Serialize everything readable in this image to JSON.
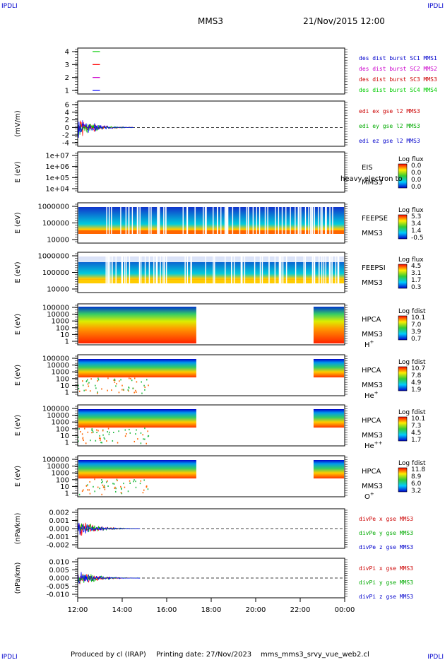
{
  "corner": {
    "tl": "IPDLI",
    "tr": "IPDLI",
    "bl": "IPDLI",
    "br": "IPDLI"
  },
  "header": {
    "mission": "MMS3",
    "datetime": "21/Nov/2015 12:00"
  },
  "footer": {
    "produced": "Produced by cl (IRAP)",
    "printing": "Printing date: 27/Nov/2023",
    "file": "mms_mms3_srvy_vue_web2.cl"
  },
  "colors": {
    "c1": "#0000ff",
    "c2": "#cc00cc",
    "c3": "#ff0000",
    "c4": "#00cc00"
  },
  "chart_data": [
    {
      "id": "burst",
      "type": "line",
      "ylabel": "",
      "yticks": [
        "4",
        "3",
        "2",
        "1"
      ],
      "legend": [
        {
          "label": "des dist burst SC1 MMS1",
          "color": "#0000cc"
        },
        {
          "label": "des dist burst SC2 MMS2",
          "color": "#cc00cc"
        },
        {
          "label": "des dist burst SC3 MMS3",
          "color": "#cc0000"
        },
        {
          "label": "des dist burst SC4 MMS4",
          "color": "#00cc00"
        }
      ],
      "series": [
        {
          "color": "#00cc00",
          "y": 4,
          "x": [
            12.67,
            13.0
          ]
        },
        {
          "color": "#ff0000",
          "y": 3,
          "x": [
            12.67,
            13.0
          ]
        },
        {
          "color": "#cc00cc",
          "y": 2,
          "x": [
            12.67,
            13.0
          ]
        },
        {
          "color": "#0000ff",
          "y": 1,
          "x": [
            12.67,
            13.0
          ]
        }
      ]
    },
    {
      "id": "edi",
      "type": "line",
      "ylabel": "(mV/m)",
      "yticks": [
        "6",
        "4",
        "2",
        "0",
        "-2",
        "-4"
      ],
      "legend": [
        {
          "label": "edi ex gse l2 MMS3",
          "color": "#cc0000"
        },
        {
          "label": "edi ey gse l2 MMS3",
          "color": "#00aa00"
        },
        {
          "label": "edi ez gse l2 MMS3",
          "color": "#0000cc"
        }
      ]
    },
    {
      "id": "eis",
      "type": "heatmap",
      "ylabel": "E (eV)",
      "yticks": [
        "1e+07",
        "1e+06",
        "1e+05",
        "1e+04"
      ],
      "instrument": [
        "EIS",
        "MMS3"
      ],
      "overlay": "heavy electron to",
      "cbar_title": "Log flux",
      "cbar_ticks": [
        "0.0",
        "0.0",
        "0.0",
        "0.0"
      ]
    },
    {
      "id": "feepse",
      "type": "heatmap",
      "ylabel": "E (eV)",
      "yticks": [
        "1000000",
        "100000",
        "10000"
      ],
      "instrument": [
        "FEEPSE",
        "MMS3"
      ],
      "cbar_title": "Log flux",
      "cbar_ticks": [
        "5.3",
        "3.4",
        "1.4",
        "-0.5"
      ]
    },
    {
      "id": "feepsi",
      "type": "heatmap",
      "ylabel": "E (eV)",
      "yticks": [
        "1000000",
        "100000",
        "10000"
      ],
      "instrument": [
        "FEEPSI",
        "MMS3"
      ],
      "cbar_title": "Log flux",
      "cbar_ticks": [
        "4.5",
        "3.1",
        "1.7",
        "0.3"
      ]
    },
    {
      "id": "hpca_h",
      "type": "heatmap",
      "ylabel": "E (eV)",
      "yticks": [
        "100000",
        "10000",
        "1000",
        "100",
        "10",
        "1"
      ],
      "instrument": [
        "HPCA",
        "MMS3"
      ],
      "species": "H",
      "species_sup": "+",
      "cbar_title": "Log fdist",
      "cbar_ticks": [
        "10.1",
        "7.0",
        "3.9",
        "0.7"
      ]
    },
    {
      "id": "hpca_he",
      "type": "heatmap",
      "ylabel": "E (eV)",
      "yticks": [
        "100000",
        "10000",
        "1000",
        "100",
        "10",
        "1"
      ],
      "instrument": [
        "HPCA",
        "MMS3"
      ],
      "species": "He",
      "species_sup": "+",
      "cbar_title": "Log fdist",
      "cbar_ticks": [
        "10.7",
        "7.8",
        "4.9",
        "1.9"
      ]
    },
    {
      "id": "hpca_he2",
      "type": "heatmap",
      "ylabel": "E (eV)",
      "yticks": [
        "100000",
        "10000",
        "1000",
        "100",
        "10",
        "1"
      ],
      "instrument": [
        "HPCA",
        "MMS3"
      ],
      "species": "He",
      "species_sup": "++",
      "cbar_title": "Log fdist",
      "cbar_ticks": [
        "10.1",
        "7.3",
        "4.5",
        "1.7"
      ]
    },
    {
      "id": "hpca_o",
      "type": "heatmap",
      "ylabel": "E (eV)",
      "yticks": [
        "100000",
        "10000",
        "1000",
        "100",
        "10",
        "1"
      ],
      "instrument": [
        "HPCA",
        "MMS3"
      ],
      "species": "O",
      "species_sup": "+",
      "cbar_title": "Log fdist",
      "cbar_ticks": [
        "11.8",
        "8.9",
        "6.0",
        "3.2"
      ]
    },
    {
      "id": "divpe",
      "type": "line",
      "ylabel": "(nPa/km)",
      "yticks": [
        "0.002",
        "0.001",
        "0.000",
        "-0.001",
        "-0.002"
      ],
      "legend": [
        {
          "label": "divPe x gse MMS3",
          "color": "#cc0000"
        },
        {
          "label": "divPe y gse MMS3",
          "color": "#00aa00"
        },
        {
          "label": "divPe z gse MMS3",
          "color": "#0000cc"
        }
      ]
    },
    {
      "id": "divpi",
      "type": "line",
      "ylabel": "(nPa/km)",
      "yticks": [
        "0.010",
        "0.005",
        "0.000",
        "-0.005",
        "-0.010"
      ],
      "legend": [
        {
          "label": "divPi x gse MMS3",
          "color": "#cc0000"
        },
        {
          "label": "divPi y gse MMS3",
          "color": "#00aa00"
        },
        {
          "label": "divPi z gse MMS3",
          "color": "#0000cc"
        }
      ]
    }
  ],
  "xaxis": {
    "ticks": [
      "12:00",
      "14:00",
      "16:00",
      "18:00",
      "20:00",
      "22:00",
      "00:00"
    ],
    "range_hours": [
      12,
      24
    ]
  }
}
